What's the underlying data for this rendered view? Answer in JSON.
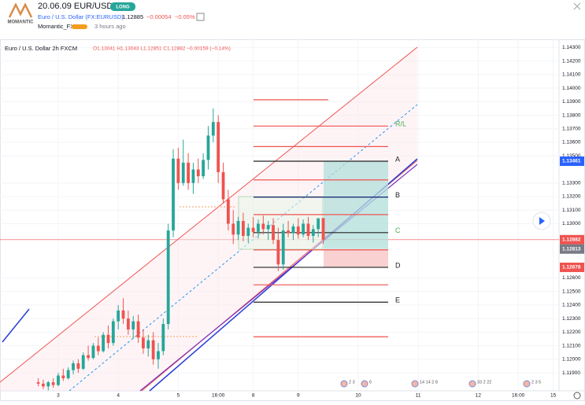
{
  "header": {
    "logo": "MOMANTIC",
    "title": "20.06.09 EUR/USD",
    "badge": "LONG",
    "symbol": "Euro / U.S. Dollar (FX:EURUSD)",
    "price": "1.12885",
    "change": "−0.00054",
    "change_pct": "−0.05%",
    "author": "Momantic_FX",
    "time": "3 hours ago"
  },
  "chart_data": {
    "type": "candlestick",
    "legend_symbol": "Euro / U.S. Dollar  2h  FXCM",
    "legend_ohlc": "O1.13041 H1.13043 L1.12851 C1.12882 −0.00159 (−0.14%)",
    "up_color": "#26a69a",
    "down_color": "#ef5350",
    "x": [
      -4,
      -3,
      -2,
      -1,
      0,
      1,
      2,
      3,
      4,
      5,
      6,
      7,
      8,
      9,
      10,
      11,
      12,
      13,
      14,
      15,
      16,
      17,
      18,
      19,
      20,
      21,
      22,
      23,
      24,
      25,
      26,
      27,
      28,
      29,
      30,
      31,
      32,
      33,
      34,
      35,
      36,
      37,
      38,
      39,
      40,
      41,
      42,
      43,
      44,
      45,
      46,
      47,
      48,
      49,
      50,
      51,
      52,
      53
    ],
    "open": [
      1.1183,
      1.1182,
      1.118,
      1.1183,
      1.1181,
      1.1188,
      1.1186,
      1.1192,
      1.1197,
      1.1193,
      1.1203,
      1.1201,
      1.121,
      1.1206,
      1.1218,
      1.1212,
      1.1228,
      1.1236,
      1.123,
      1.1222,
      1.1228,
      1.1216,
      1.1208,
      1.1214,
      1.12,
      1.1206,
      1.1226,
      1.1295,
      1.1348,
      1.133,
      1.1345,
      1.133,
      1.134,
      1.1335,
      1.1347,
      1.1365,
      1.1375,
      1.1338,
      1.1318,
      1.13,
      1.1292,
      1.1302,
      1.1291,
      1.1297,
      1.1294,
      1.13,
      1.1296,
      1.1299,
      1.1288,
      1.127,
      1.1295,
      1.1293,
      1.1298,
      1.1292,
      1.13,
      1.1291,
      1.1296,
      1.13041
    ],
    "high": [
      1.1186,
      1.1185,
      1.1184,
      1.1186,
      1.119,
      1.1193,
      1.1194,
      1.1199,
      1.12,
      1.1205,
      1.121,
      1.1212,
      1.1216,
      1.122,
      1.1225,
      1.123,
      1.124,
      1.1245,
      1.1236,
      1.1232,
      1.1233,
      1.1222,
      1.1218,
      1.122,
      1.1212,
      1.123,
      1.13,
      1.1355,
      1.1356,
      1.1362,
      1.1352,
      1.1345,
      1.1348,
      1.1352,
      1.1372,
      1.1385,
      1.138,
      1.1345,
      1.1325,
      1.131,
      1.1305,
      1.1308,
      1.13,
      1.1305,
      1.1303,
      1.1306,
      1.1302,
      1.1304,
      1.1297,
      1.13,
      1.1302,
      1.13,
      1.1304,
      1.1303,
      1.1305,
      1.1299,
      1.1303,
      1.13043
    ],
    "low": [
      1.118,
      1.1178,
      1.1177,
      1.1179,
      1.118,
      1.1184,
      1.1185,
      1.1189,
      1.119,
      1.1192,
      1.1199,
      1.12,
      1.1203,
      1.1205,
      1.1208,
      1.121,
      1.1222,
      1.1226,
      1.1218,
      1.1215,
      1.1212,
      1.1204,
      1.1202,
      1.1196,
      1.1193,
      1.1203,
      1.1222,
      1.129,
      1.1325,
      1.1328,
      1.1325,
      1.1322,
      1.133,
      1.1333,
      1.134,
      1.136,
      1.133,
      1.1315,
      1.1295,
      1.1285,
      1.1288,
      1.1287,
      1.1286,
      1.129,
      1.1289,
      1.1292,
      1.1288,
      1.1285,
      1.1265,
      1.1266,
      1.129,
      1.1288,
      1.1289,
      1.129,
      1.1288,
      1.1286,
      1.129,
      1.12851
    ],
    "close": [
      1.1182,
      1.118,
      1.1183,
      1.1181,
      1.1188,
      1.1186,
      1.1192,
      1.1197,
      1.1193,
      1.1203,
      1.1201,
      1.121,
      1.1206,
      1.1218,
      1.1212,
      1.1228,
      1.1236,
      1.123,
      1.1222,
      1.1228,
      1.1216,
      1.1208,
      1.1214,
      1.12,
      1.1206,
      1.1226,
      1.1295,
      1.1348,
      1.133,
      1.1345,
      1.133,
      1.134,
      1.1335,
      1.1347,
      1.1365,
      1.1375,
      1.1338,
      1.1318,
      1.13,
      1.1292,
      1.1302,
      1.1291,
      1.1297,
      1.1294,
      1.13,
      1.1296,
      1.1299,
      1.1288,
      1.127,
      1.1295,
      1.1293,
      1.1298,
      1.1292,
      1.13,
      1.1291,
      1.1296,
      1.1304,
      1.12882
    ],
    "xlim": [
      -11.65,
      100.16
    ],
    "ylim": [
      1.11767,
      1.1436
    ],
    "xticks": [
      {
        "value": 0,
        "label": "3"
      },
      {
        "value": 12,
        "label": "4"
      },
      {
        "value": 24,
        "label": "5"
      },
      {
        "value": 32,
        "label": "16:00"
      },
      {
        "value": 39,
        "label": "8"
      },
      {
        "value": 48,
        "label": "9"
      },
      {
        "value": 60,
        "label": "10"
      },
      {
        "value": 72,
        "label": "11"
      },
      {
        "value": 84,
        "label": "12"
      },
      {
        "value": 92,
        "label": "16:00"
      },
      {
        "value": 99,
        "label": "15"
      }
    ],
    "yticks": [
      {
        "value": 1.143,
        "label": "1.14300"
      },
      {
        "value": 1.142,
        "label": "1.14200"
      },
      {
        "value": 1.141,
        "label": "1.14100"
      },
      {
        "value": 1.14,
        "label": "1.14000"
      },
      {
        "value": 1.139,
        "label": "1.13900"
      },
      {
        "value": 1.138,
        "label": "1.13800"
      },
      {
        "value": 1.137,
        "label": "1.13700"
      },
      {
        "value": 1.136,
        "label": "1.13600"
      },
      {
        "value": 1.135,
        "label": "1.13500"
      },
      {
        "value": 1.133,
        "label": "1.13300"
      },
      {
        "value": 1.132,
        "label": "1.13200"
      },
      {
        "value": 1.131,
        "label": "1.13100"
      },
      {
        "value": 1.13,
        "label": "1.13000"
      },
      {
        "value": 1.126,
        "label": "1.12600"
      },
      {
        "value": 1.125,
        "label": "1.12500"
      },
      {
        "value": 1.124,
        "label": "1.12400"
      },
      {
        "value": 1.123,
        "label": "1.12300"
      },
      {
        "value": 1.122,
        "label": "1.12200"
      },
      {
        "value": 1.121,
        "label": "1.12100"
      },
      {
        "value": 1.12,
        "label": "1.12000"
      },
      {
        "value": 1.119,
        "label": "1.11900"
      }
    ],
    "grid": true,
    "price_labels": [
      {
        "value": 1.13461,
        "color": "#2962ff"
      },
      {
        "value": 1.12882,
        "color": "#ef5350"
      },
      {
        "value": 1.12813,
        "color": "#787b86"
      },
      {
        "value": 1.12678,
        "color": "#ef5350"
      }
    ],
    "levels": [
      {
        "value": 1.13914,
        "color": "#ef5350"
      },
      {
        "value": 1.1372,
        "color": "#ef5350",
        "label": "R/L",
        "label_color": "#4caf50"
      },
      {
        "value": 1.13569,
        "color": "#ef5350"
      },
      {
        "value": 1.13461,
        "color": "#222222",
        "label": "A",
        "label_color": "#222222"
      },
      {
        "value": 1.13323,
        "color": "#ef5350"
      },
      {
        "value": 1.13196,
        "color": "#131f6b",
        "label": "B",
        "label_color": "#222222"
      },
      {
        "value": 1.13067,
        "color": "#ef5350"
      },
      {
        "value": 1.12934,
        "color": "#222222",
        "label": "C",
        "label_color": "#4caf50"
      },
      {
        "value": 1.12807,
        "color": "#ef5350"
      },
      {
        "value": 1.12678,
        "color": "#222222",
        "label": "D",
        "label_color": "#222222"
      },
      {
        "value": 1.12549,
        "color": "#ef5350"
      },
      {
        "value": 1.12421,
        "color": "#222222",
        "label": "E",
        "label_color": "#222222"
      },
      {
        "value": 1.12166,
        "color": "#ef5350"
      }
    ],
    "events": [
      "2 3",
      "6",
      "14 14 2 8",
      "33 2 22",
      "2 3 5"
    ]
  }
}
